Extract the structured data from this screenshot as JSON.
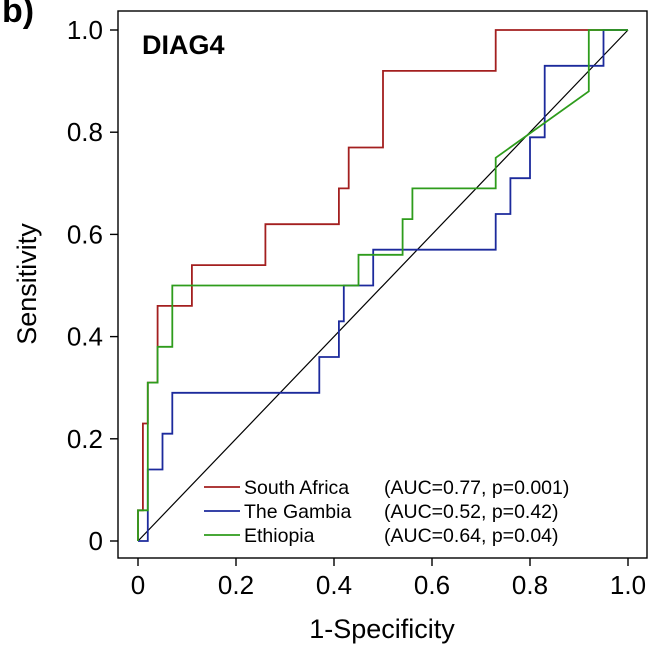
{
  "panel_letter": "b)",
  "chart_data": {
    "type": "line",
    "title": "DIAG4",
    "xlabel": "1-Specificity",
    "ylabel": "Sensitivity",
    "xlim": [
      0,
      1
    ],
    "ylim": [
      0,
      1
    ],
    "xticks": [
      "0",
      "0.2",
      "0.4",
      "0.6",
      "0.8",
      "1.0"
    ],
    "yticks": [
      "0",
      "0.2",
      "0.4",
      "0.6",
      "0.8",
      "1.0"
    ],
    "grid": false,
    "legend_position": "bottom-right",
    "reference_line": {
      "from": [
        0,
        0
      ],
      "to": [
        1,
        1
      ],
      "color": "#000000"
    },
    "series": [
      {
        "name": "South Africa",
        "stat": "(AUC=0.77, p=0.001)",
        "color": "#a31f1f",
        "x": [
          0,
          0,
          0.01,
          0.01,
          0.02,
          0.02,
          0.04,
          0.04,
          0.11,
          0.11,
          0.26,
          0.26,
          0.41,
          0.41,
          0.43,
          0.43,
          0.5,
          0.5,
          0.73,
          0.73,
          0.92,
          0.92,
          1.0
        ],
        "y": [
          0,
          0.06,
          0.06,
          0.23,
          0.23,
          0.31,
          0.31,
          0.46,
          0.46,
          0.54,
          0.54,
          0.62,
          0.62,
          0.69,
          0.69,
          0.77,
          0.77,
          0.92,
          0.92,
          1.0,
          1.0,
          1.0,
          1.0
        ]
      },
      {
        "name": "The Gambia",
        "stat": "(AUC=0.52, p=0.42)",
        "color": "#1c2a9c",
        "x": [
          0,
          0.02,
          0.02,
          0.05,
          0.05,
          0.07,
          0.07,
          0.37,
          0.37,
          0.41,
          0.41,
          0.42,
          0.42,
          0.48,
          0.48,
          0.51,
          0.51,
          0.73,
          0.73,
          0.76,
          0.76,
          0.8,
          0.8,
          0.83,
          0.83,
          0.92,
          0.92,
          0.95,
          0.95,
          1.0
        ],
        "y": [
          0,
          0,
          0.14,
          0.14,
          0.21,
          0.21,
          0.29,
          0.29,
          0.36,
          0.36,
          0.43,
          0.43,
          0.5,
          0.5,
          0.57,
          0.57,
          0.57,
          0.57,
          0.64,
          0.64,
          0.71,
          0.71,
          0.79,
          0.79,
          0.93,
          0.93,
          0.93,
          0.93,
          1.0,
          1.0
        ]
      },
      {
        "name": "Ethiopia",
        "stat": "(AUC=0.64, p=0.04)",
        "color": "#2e9c1c",
        "x": [
          0,
          0,
          0.02,
          0.02,
          0.04,
          0.04,
          0.07,
          0.07,
          0.45,
          0.45,
          0.54,
          0.54,
          0.56,
          0.56,
          0.73,
          0.73,
          0.92,
          0.92,
          1.0
        ],
        "y": [
          0,
          0.06,
          0.06,
          0.31,
          0.31,
          0.38,
          0.38,
          0.5,
          0.5,
          0.56,
          0.56,
          0.63,
          0.63,
          0.69,
          0.69,
          0.75,
          0.88,
          1.0,
          1.0
        ]
      }
    ]
  }
}
